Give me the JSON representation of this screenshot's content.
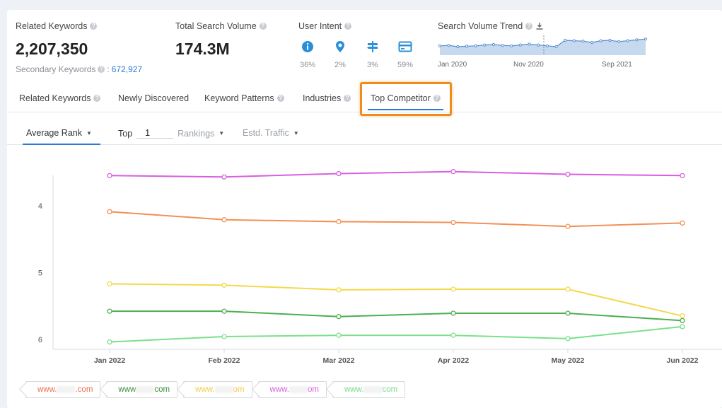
{
  "stats": {
    "related": {
      "label": "Related Keywords",
      "value": "2,207,350",
      "secondary_label": "Secondary Keywords",
      "secondary_sep": ":",
      "secondary_value": "672,927"
    },
    "volume": {
      "label": "Total Search Volume",
      "value": "174.3M"
    },
    "intent": {
      "label": "User Intent",
      "items": [
        {
          "icon": "info-icon",
          "pct": "36%"
        },
        {
          "icon": "location-icon",
          "pct": "2%"
        },
        {
          "icon": "signpost-icon",
          "pct": "3%"
        },
        {
          "icon": "card-icon",
          "pct": "59%"
        }
      ]
    },
    "trend": {
      "label": "Search Volume Trend",
      "x_labels": [
        "Jan 2020",
        "Nov 2020",
        "Sep 2021"
      ],
      "values": [
        62,
        63,
        60,
        61,
        62,
        64,
        65,
        63,
        62,
        64,
        66,
        64,
        62,
        60,
        75,
        74,
        73,
        70,
        74,
        75,
        72,
        74,
        76,
        78
      ]
    }
  },
  "tabs": [
    {
      "label": "Related Keywords",
      "help": true
    },
    {
      "label": "Newly Discovered",
      "help": false
    },
    {
      "label": "Keyword Patterns",
      "help": true
    },
    {
      "label": "Industries",
      "help": true
    },
    {
      "label": "Top Competitor",
      "help": true,
      "active": true
    }
  ],
  "filters": {
    "average_rank": "Average Rank",
    "top_label": "Top",
    "top_value": "1",
    "rankings": "Rankings",
    "traffic": "Estd. Traffic"
  },
  "chart_data": {
    "type": "line",
    "x": [
      "Jan 2022",
      "Feb 2022",
      "Mar 2022",
      "Apr 2022",
      "May 2022",
      "Jun 2022"
    ],
    "y_ticks": [
      4,
      5,
      6
    ],
    "ylim": [
      6.15,
      3.25
    ],
    "y_inverted": true,
    "series": [
      {
        "color": "#d85fe0",
        "values": [
          3.55,
          3.57,
          3.52,
          3.49,
          3.53,
          3.55
        ]
      },
      {
        "color": "#f39055",
        "values": [
          4.09,
          4.21,
          4.24,
          4.25,
          4.31,
          4.26
        ]
      },
      {
        "color": "#f3d94a",
        "values": [
          5.17,
          5.19,
          5.26,
          5.25,
          5.25,
          5.65
        ]
      },
      {
        "color": "#4caf50",
        "values": [
          5.58,
          5.58,
          5.66,
          5.61,
          5.61,
          5.72
        ]
      },
      {
        "color": "#7be08a",
        "values": [
          6.04,
          5.96,
          5.94,
          5.94,
          5.99,
          5.81
        ]
      }
    ]
  },
  "legend": [
    {
      "prefix": "www.",
      "suffix": ".com",
      "color": "#f06d4f"
    },
    {
      "prefix": "www",
      "suffix": "com",
      "color": "#3a8a3a"
    },
    {
      "prefix": "www.",
      "suffix": "om",
      "color": "#f3c94a"
    },
    {
      "prefix": "www.",
      "suffix": "om",
      "color": "#d85fe0"
    },
    {
      "prefix": "www.",
      "suffix": "com",
      "color": "#7bd88a"
    }
  ]
}
